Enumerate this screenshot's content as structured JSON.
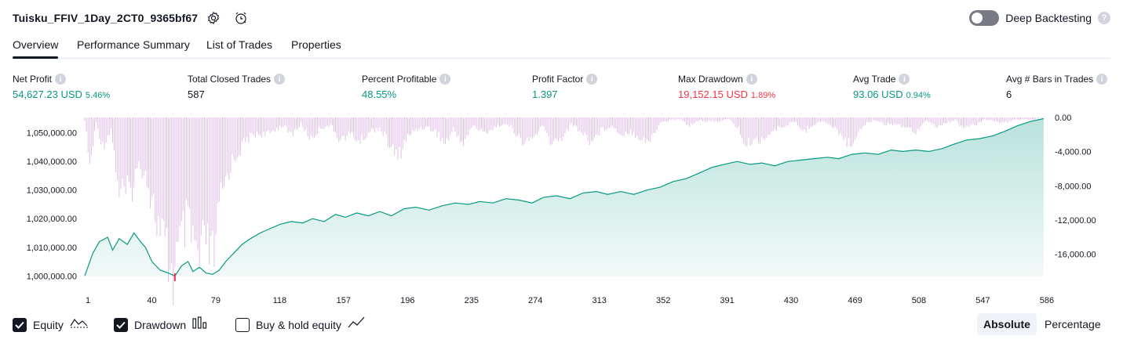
{
  "header": {
    "title": "Tuisku_FFIV_1Day_2CT0_9365bf67",
    "settings_icon": "settings-icon",
    "alert_icon": "add-alert-icon",
    "deep_backtesting_label": "Deep Backtesting",
    "deep_backtesting_enabled": false,
    "help_glyph": "?"
  },
  "tabs": [
    {
      "label": "Overview",
      "active": true
    },
    {
      "label": "Performance Summary",
      "active": false
    },
    {
      "label": "List of Trades",
      "active": false
    },
    {
      "label": "Properties",
      "active": false
    }
  ],
  "metrics": [
    {
      "label": "Net Profit",
      "value": "54,627.23 USD",
      "sub": "5.46%",
      "color": "#089981"
    },
    {
      "label": "Total Closed Trades",
      "value": "587",
      "sub": "",
      "color": "#131722"
    },
    {
      "label": "Percent Profitable",
      "value": "48.55%",
      "sub": "",
      "color": "#089981"
    },
    {
      "label": "Profit Factor",
      "value": "1.397",
      "sub": "",
      "color": "#089981"
    },
    {
      "label": "Max Drawdown",
      "value": "19,152.15 USD",
      "sub": "1.89%",
      "color": "#f23645"
    },
    {
      "label": "Avg Trade",
      "value": "93.06 USD",
      "sub": "0.94%",
      "color": "#089981"
    },
    {
      "label": "Avg # Bars in Trades",
      "value": "6",
      "sub": "",
      "color": "#131722"
    }
  ],
  "chart_data": {
    "type": "area",
    "x_ticks": [
      1,
      40,
      79,
      118,
      157,
      196,
      235,
      274,
      313,
      352,
      391,
      430,
      469,
      508,
      547,
      586
    ],
    "x_range": [
      1,
      587
    ],
    "left_axis": {
      "ticks": [
        "1,050,000.00",
        "1,040,000.00",
        "1,030,000.00",
        "1,020,000.00",
        "1,010,000.00",
        "1,000,000.00"
      ],
      "tick_values": [
        1050000,
        1040000,
        1030000,
        1020000,
        1010000,
        1000000
      ],
      "range": [
        999800,
        1055400
      ]
    },
    "right_axis": {
      "ticks": [
        "0.00",
        "-4,000.00",
        "-8,000.00",
        "-12,000.00",
        "-16,000.00"
      ],
      "tick_values": [
        0,
        -4000,
        -8000,
        -12000,
        -16000
      ],
      "range": [
        -18600,
        0
      ]
    },
    "series": [
      {
        "name": "Equity",
        "color": "#089981",
        "axis": "left",
        "points": [
          [
            1,
            1000000
          ],
          [
            6,
            1008000
          ],
          [
            10,
            1012000
          ],
          [
            15,
            1013500
          ],
          [
            18,
            1009000
          ],
          [
            22,
            1013000
          ],
          [
            27,
            1011000
          ],
          [
            31,
            1015000
          ],
          [
            35,
            1012000
          ],
          [
            38,
            1010000
          ],
          [
            42,
            1005000
          ],
          [
            47,
            1002000
          ],
          [
            52,
            1001000
          ],
          [
            56,
            999900
          ],
          [
            60,
            1003500
          ],
          [
            64,
            1005000
          ],
          [
            67,
            1001500
          ],
          [
            71,
            1003000
          ],
          [
            75,
            1001000
          ],
          [
            79,
            1000500
          ],
          [
            83,
            1002000
          ],
          [
            87,
            1005000
          ],
          [
            92,
            1008000
          ],
          [
            97,
            1011000
          ],
          [
            102,
            1013000
          ],
          [
            108,
            1015000
          ],
          [
            114,
            1016500
          ],
          [
            120,
            1018000
          ],
          [
            127,
            1019000
          ],
          [
            134,
            1018500
          ],
          [
            140,
            1020000
          ],
          [
            147,
            1019000
          ],
          [
            154,
            1021500
          ],
          [
            160,
            1020500
          ],
          [
            167,
            1022000
          ],
          [
            174,
            1021000
          ],
          [
            181,
            1022500
          ],
          [
            188,
            1021000
          ],
          [
            196,
            1023500
          ],
          [
            203,
            1024000
          ],
          [
            211,
            1023000
          ],
          [
            219,
            1024500
          ],
          [
            227,
            1025500
          ],
          [
            235,
            1025000
          ],
          [
            242,
            1026000
          ],
          [
            250,
            1025500
          ],
          [
            258,
            1027000
          ],
          [
            266,
            1026500
          ],
          [
            274,
            1025500
          ],
          [
            281,
            1027500
          ],
          [
            289,
            1028000
          ],
          [
            297,
            1027000
          ],
          [
            305,
            1029000
          ],
          [
            313,
            1029500
          ],
          [
            320,
            1028500
          ],
          [
            328,
            1029500
          ],
          [
            336,
            1028500
          ],
          [
            344,
            1030000
          ],
          [
            352,
            1031000
          ],
          [
            360,
            1033000
          ],
          [
            368,
            1034000
          ],
          [
            376,
            1036000
          ],
          [
            384,
            1038000
          ],
          [
            391,
            1039000
          ],
          [
            399,
            1040000
          ],
          [
            407,
            1039000
          ],
          [
            414,
            1039500
          ],
          [
            422,
            1038500
          ],
          [
            430,
            1040000
          ],
          [
            438,
            1040500
          ],
          [
            446,
            1041000
          ],
          [
            454,
            1041500
          ],
          [
            461,
            1041000
          ],
          [
            469,
            1042500
          ],
          [
            477,
            1043000
          ],
          [
            485,
            1042500
          ],
          [
            493,
            1044000
          ],
          [
            500,
            1043500
          ],
          [
            508,
            1044000
          ],
          [
            516,
            1043500
          ],
          [
            524,
            1044500
          ],
          [
            531,
            1046000
          ],
          [
            539,
            1047500
          ],
          [
            547,
            1048000
          ],
          [
            555,
            1049000
          ],
          [
            562,
            1050500
          ],
          [
            570,
            1052500
          ],
          [
            578,
            1054000
          ],
          [
            586,
            1055000
          ]
        ]
      },
      {
        "name": "Drawdown",
        "color": "#e1bee7",
        "axis": "right",
        "anchors": [
          [
            1,
            -300
          ],
          [
            4,
            -5800
          ],
          [
            8,
            -600
          ],
          [
            12,
            -3400
          ],
          [
            17,
            -1300
          ],
          [
            22,
            -8600
          ],
          [
            28,
            -9100
          ],
          [
            33,
            -6200
          ],
          [
            37,
            -5600
          ],
          [
            42,
            -9500
          ],
          [
            47,
            -13800
          ],
          [
            51,
            -16000
          ],
          [
            55,
            -18600
          ],
          [
            59,
            -15200
          ],
          [
            63,
            -12500
          ],
          [
            67,
            -14500
          ],
          [
            71,
            -17300
          ],
          [
            75,
            -14200
          ],
          [
            79,
            -17200
          ],
          [
            84,
            -9600
          ],
          [
            89,
            -6000
          ],
          [
            94,
            -4200
          ],
          [
            100,
            -2600
          ],
          [
            106,
            -1800
          ],
          [
            112,
            -2100
          ],
          [
            117,
            -1400
          ],
          [
            122,
            -900
          ],
          [
            127,
            -2000
          ],
          [
            133,
            -800
          ],
          [
            139,
            -2500
          ],
          [
            145,
            -1200
          ],
          [
            151,
            -900
          ],
          [
            157,
            -2600
          ],
          [
            163,
            -1900
          ],
          [
            169,
            -2800
          ],
          [
            175,
            -1600
          ],
          [
            181,
            -1200
          ],
          [
            187,
            -3200
          ],
          [
            192,
            -4800
          ],
          [
            197,
            -2500
          ],
          [
            203,
            -1400
          ],
          [
            209,
            -1100
          ],
          [
            215,
            -1600
          ],
          [
            221,
            -3100
          ],
          [
            226,
            -1400
          ],
          [
            232,
            -3000
          ],
          [
            238,
            -900
          ],
          [
            244,
            -1800
          ],
          [
            250,
            -1300
          ],
          [
            256,
            -700
          ],
          [
            262,
            -1200
          ],
          [
            268,
            -3100
          ],
          [
            274,
            -2500
          ],
          [
            280,
            -1000
          ],
          [
            286,
            -3100
          ],
          [
            292,
            -2300
          ],
          [
            298,
            -700
          ],
          [
            304,
            -1700
          ],
          [
            310,
            -2800
          ],
          [
            316,
            -1500
          ],
          [
            322,
            -900
          ],
          [
            328,
            -1900
          ],
          [
            334,
            -1600
          ],
          [
            340,
            -2300
          ],
          [
            346,
            -2800
          ],
          [
            352,
            -600
          ],
          [
            358,
            -300
          ],
          [
            364,
            -200
          ],
          [
            370,
            -900
          ],
          [
            376,
            -300
          ],
          [
            382,
            -500
          ],
          [
            388,
            -400
          ],
          [
            394,
            -200
          ],
          [
            400,
            -1300
          ],
          [
            404,
            -3400
          ],
          [
            408,
            -2700
          ],
          [
            413,
            -2600
          ],
          [
            418,
            -2000
          ],
          [
            423,
            -1400
          ],
          [
            428,
            -900
          ],
          [
            434,
            -500
          ],
          [
            440,
            -1600
          ],
          [
            446,
            -700
          ],
          [
            452,
            -400
          ],
          [
            458,
            -1200
          ],
          [
            464,
            -2200
          ],
          [
            468,
            -3500
          ],
          [
            473,
            -1500
          ],
          [
            478,
            -600
          ],
          [
            484,
            -300
          ],
          [
            490,
            -800
          ],
          [
            496,
            -700
          ],
          [
            502,
            -1200
          ],
          [
            508,
            -1600
          ],
          [
            514,
            -300
          ],
          [
            520,
            -1100
          ],
          [
            526,
            -700
          ],
          [
            532,
            -300
          ],
          [
            538,
            -1300
          ],
          [
            544,
            -900
          ],
          [
            550,
            -200
          ],
          [
            556,
            -400
          ],
          [
            562,
            -600
          ],
          [
            568,
            -300
          ],
          [
            574,
            -200
          ],
          [
            580,
            -300
          ],
          [
            586,
            0
          ]
        ]
      }
    ],
    "max_drawdown_point": {
      "x": 56,
      "color": "#f23645"
    }
  },
  "legend": [
    {
      "label": "Equity",
      "checked": true,
      "icon": "area-line-icon"
    },
    {
      "label": "Drawdown",
      "checked": true,
      "icon": "bars-icon"
    },
    {
      "label": "Buy & hold equity",
      "checked": false,
      "icon": "trend-line-icon"
    }
  ],
  "scale_modes": [
    {
      "label": "Absolute",
      "active": true
    },
    {
      "label": "Percentage",
      "active": false
    }
  ]
}
